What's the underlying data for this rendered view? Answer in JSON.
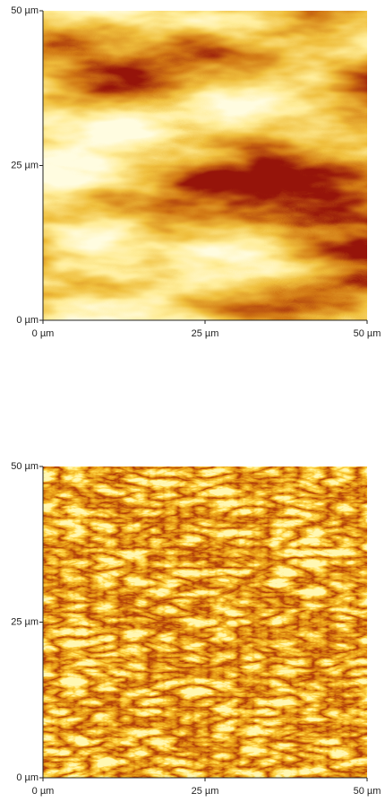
{
  "chart_data": [
    {
      "type": "image",
      "xlim": [
        0,
        50
      ],
      "ylim": [
        0,
        50
      ],
      "xticks": [
        {
          "value": 0,
          "label": "0 µm"
        },
        {
          "value": 25,
          "label": "25 µm"
        },
        {
          "value": 50,
          "label": "50 µm"
        }
      ],
      "yticks": [
        {
          "value": 0,
          "label": "0 µm"
        },
        {
          "value": 25,
          "label": "25 µm"
        },
        {
          "value": 50,
          "label": "50 µm"
        }
      ]
    },
    {
      "type": "image",
      "xlim": [
        0,
        50
      ],
      "ylim": [
        0,
        50
      ],
      "xticks": [
        {
          "value": 0,
          "label": "0 µm"
        },
        {
          "value": 25,
          "label": "25 µm"
        },
        {
          "value": 50,
          "label": "50 µm"
        }
      ],
      "yticks": [
        {
          "value": 0,
          "label": "0 µm"
        },
        {
          "value": 25,
          "label": "25 µm"
        },
        {
          "value": 50,
          "label": "50 µm"
        }
      ]
    }
  ]
}
